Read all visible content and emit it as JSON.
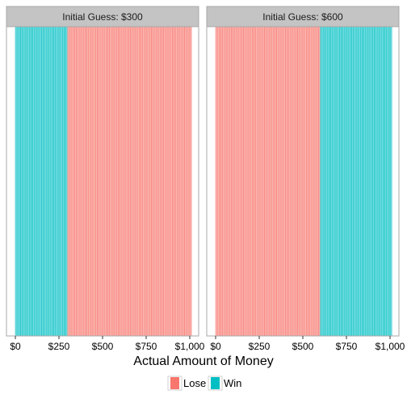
{
  "chart_data": {
    "type": "bar",
    "xlabel": "Actual Amount of Money",
    "ylabel": "",
    "xlim": [
      0,
      1000
    ],
    "x_ticks": [
      0,
      250,
      500,
      750,
      1000
    ],
    "x_tick_labels": [
      "$0",
      "$250",
      "$500",
      "$750",
      "$1,000"
    ],
    "bin_width": 10,
    "panels": [
      {
        "strip_label": "Initial Guess: $300",
        "initial_guess": 300,
        "win_range": [
          0,
          300
        ],
        "lose_range": [
          300,
          1000
        ]
      },
      {
        "strip_label": "Initial Guess: $600",
        "initial_guess": 600,
        "win_range": [
          600,
          1000
        ],
        "lose_range": [
          0,
          600
        ]
      }
    ],
    "legend": {
      "position": "bottom",
      "entries": [
        {
          "label": "Lose",
          "color": "#F8766D"
        },
        {
          "label": "Win",
          "color": "#00BFC4"
        }
      ]
    }
  },
  "colors": {
    "lose": "#F8766D",
    "win": "#00BFC4",
    "strip_bg": "#C4C4C4",
    "panel_border": "#A8A8A8"
  }
}
